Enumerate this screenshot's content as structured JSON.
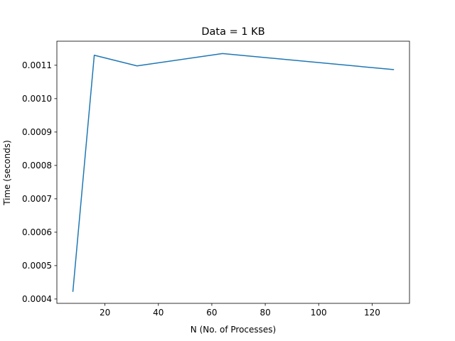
{
  "chart_data": {
    "type": "line",
    "title": "Data = 1 KB",
    "xlabel": "N (No. of Processes)",
    "ylabel": "Time (seconds)",
    "xlim": [
      2,
      134
    ],
    "ylim": [
      0.000387,
      0.001172
    ],
    "xticks": [
      20,
      40,
      60,
      80,
      100,
      120
    ],
    "yticks": [
      0.0004,
      0.0005,
      0.0006,
      0.0007,
      0.0008,
      0.0009,
      0.001,
      0.0011
    ],
    "ytick_labels": [
      "0.0004",
      "0.0005",
      "0.0006",
      "0.0007",
      "0.0008",
      "0.0009",
      "0.0010",
      "0.0011"
    ],
    "grid": false,
    "color": "#1f77b4",
    "series": [
      {
        "x": [
          8,
          16,
          32,
          64,
          128
        ],
        "y": [
          0.000423,
          0.00113,
          0.001098,
          0.001135,
          0.001087
        ]
      }
    ]
  }
}
